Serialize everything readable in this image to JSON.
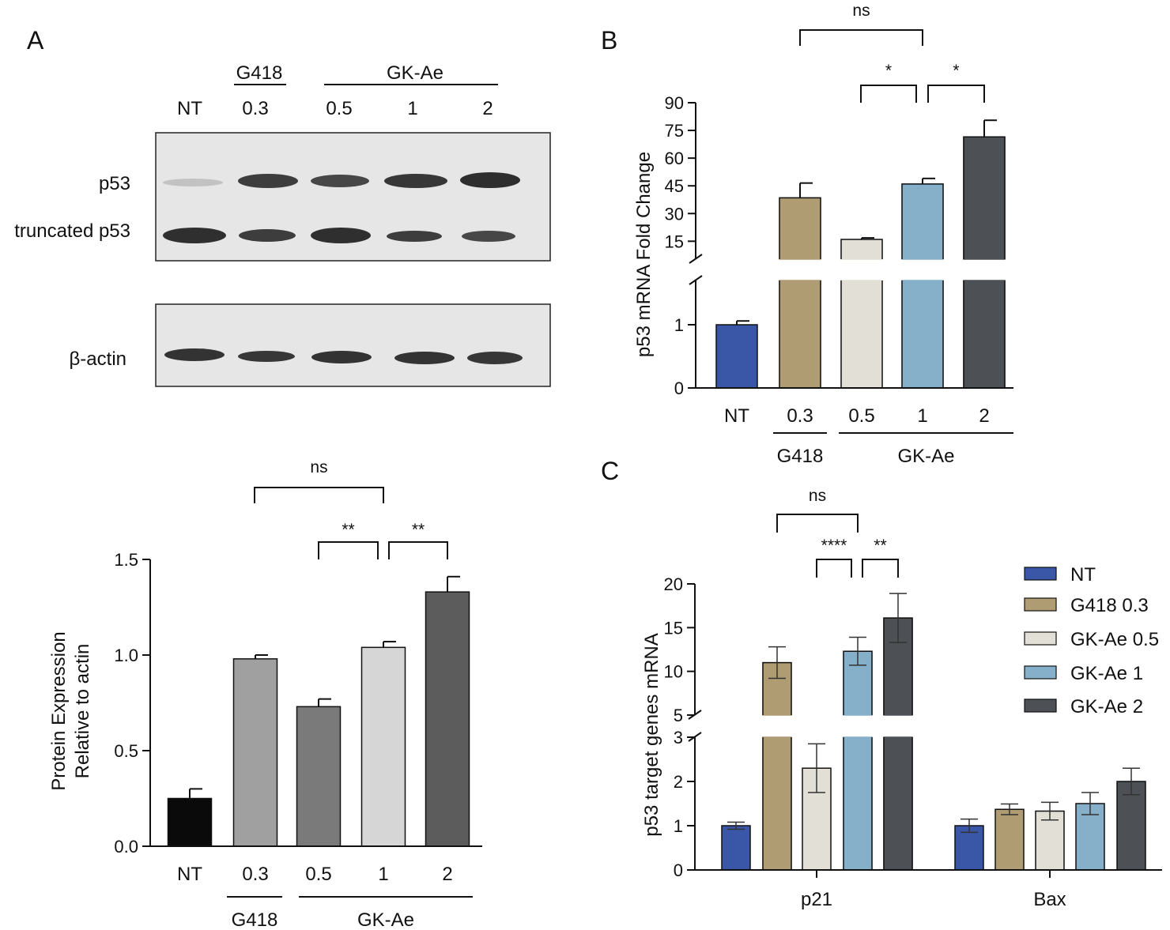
{
  "panel_labels": {
    "a": "A",
    "b": "B",
    "c": "C"
  },
  "blot": {
    "lanes": [
      "NT",
      "0.3",
      "0.5",
      "1",
      "2"
    ],
    "group_g418": "G418",
    "group_gkae": "GK-Ae",
    "row_p53": "p53",
    "row_truncated": "truncated p53",
    "row_actin": "β-actin",
    "colors": {
      "membrane": "#e6e6e6",
      "band": "#1f1f1f"
    }
  },
  "chart_data": [
    {
      "id": "protein",
      "type": "bar",
      "ylabel_lines": [
        "Protein Expression",
        "Relative to actin"
      ],
      "categories": [
        "NT",
        "0.3",
        "0.5",
        "1",
        "2"
      ],
      "values": [
        0.25,
        0.98,
        0.73,
        1.04,
        1.33
      ],
      "errors": [
        0.05,
        0.02,
        0.04,
        0.03,
        0.08
      ],
      "colors": [
        "#0a0a0a",
        "#a0a0a0",
        "#7a7a7a",
        "#d6d6d6",
        "#5c5c5c"
      ],
      "ylim": [
        0,
        1.5
      ],
      "yticks": [
        0,
        0.5,
        1.0,
        1.5
      ],
      "ytick_labels": [
        "0.0",
        "0.5",
        "1.0",
        "1.5"
      ],
      "groups": [
        {
          "label": "G418",
          "from": 1,
          "to": 1
        },
        {
          "label": "GK-Ae",
          "from": 2,
          "to": 4
        }
      ],
      "significance": [
        {
          "from": 1,
          "to": 3,
          "label": "ns"
        },
        {
          "from": 2,
          "to": 3,
          "label": "**"
        },
        {
          "from": 3,
          "to": 4,
          "label": "**"
        }
      ]
    },
    {
      "id": "p53mrna",
      "type": "bar",
      "ylabel": "p53 mRNA Fold Change",
      "categories": [
        "NT",
        "0.3",
        "0.5",
        "1",
        "2"
      ],
      "values": [
        1.0,
        38.5,
        16.0,
        46.0,
        71.5
      ],
      "errors": [
        0.06,
        8.0,
        0.8,
        3.0,
        9.0
      ],
      "colors": [
        "#3a57a7",
        "#b09c72",
        "#e1dfd6",
        "#86b0c9",
        "#4d5156"
      ],
      "axis_break": {
        "lower": [
          0,
          1.8
        ],
        "upper": [
          10,
          90
        ]
      },
      "yticks_lower": [
        0,
        1
      ],
      "yticks_upper": [
        15,
        30,
        45,
        60,
        75,
        90
      ],
      "groups": [
        {
          "label": "G418",
          "from": 1,
          "to": 1
        },
        {
          "label": "GK-Ae",
          "from": 2,
          "to": 4
        }
      ],
      "significance": [
        {
          "from": 1,
          "to": 3,
          "label": "ns"
        },
        {
          "from": 2,
          "to": 3,
          "label": "*"
        },
        {
          "from": 3,
          "to": 4,
          "label": "*"
        }
      ]
    },
    {
      "id": "targets",
      "type": "bar",
      "ylabel": "p53 target genes mRNA",
      "categories": [
        "p21",
        "Bax"
      ],
      "series": [
        {
          "name": "NT",
          "color": "#3a57a7",
          "values": [
            1.0,
            1.0
          ],
          "errors": [
            0.08,
            0.15
          ]
        },
        {
          "name": "G418 0.3",
          "color": "#b09c72",
          "values": [
            11.0,
            1.37
          ],
          "errors": [
            1.8,
            0.12
          ]
        },
        {
          "name": "GK-Ae 0.5",
          "color": "#e1dfd6",
          "values": [
            2.3,
            1.33
          ],
          "errors": [
            0.55,
            0.2
          ]
        },
        {
          "name": "GK-Ae 1",
          "color": "#86b0c9",
          "values": [
            12.3,
            1.5
          ],
          "errors": [
            1.6,
            0.25
          ]
        },
        {
          "name": "GK-Ae 2",
          "color": "#4d5156",
          "values": [
            16.1,
            2.0
          ],
          "errors": [
            2.8,
            0.3
          ]
        }
      ],
      "axis_break": {
        "lower": [
          0,
          3
        ],
        "upper": [
          5,
          20
        ]
      },
      "yticks_lower": [
        0,
        1,
        2,
        3
      ],
      "yticks_upper": [
        5,
        10,
        15,
        20
      ],
      "significance": [
        {
          "from": 1,
          "to": 3,
          "label": "ns"
        },
        {
          "from": 2,
          "to": 3,
          "label": "****"
        },
        {
          "from": 3,
          "to": 4,
          "label": "**"
        }
      ]
    }
  ]
}
